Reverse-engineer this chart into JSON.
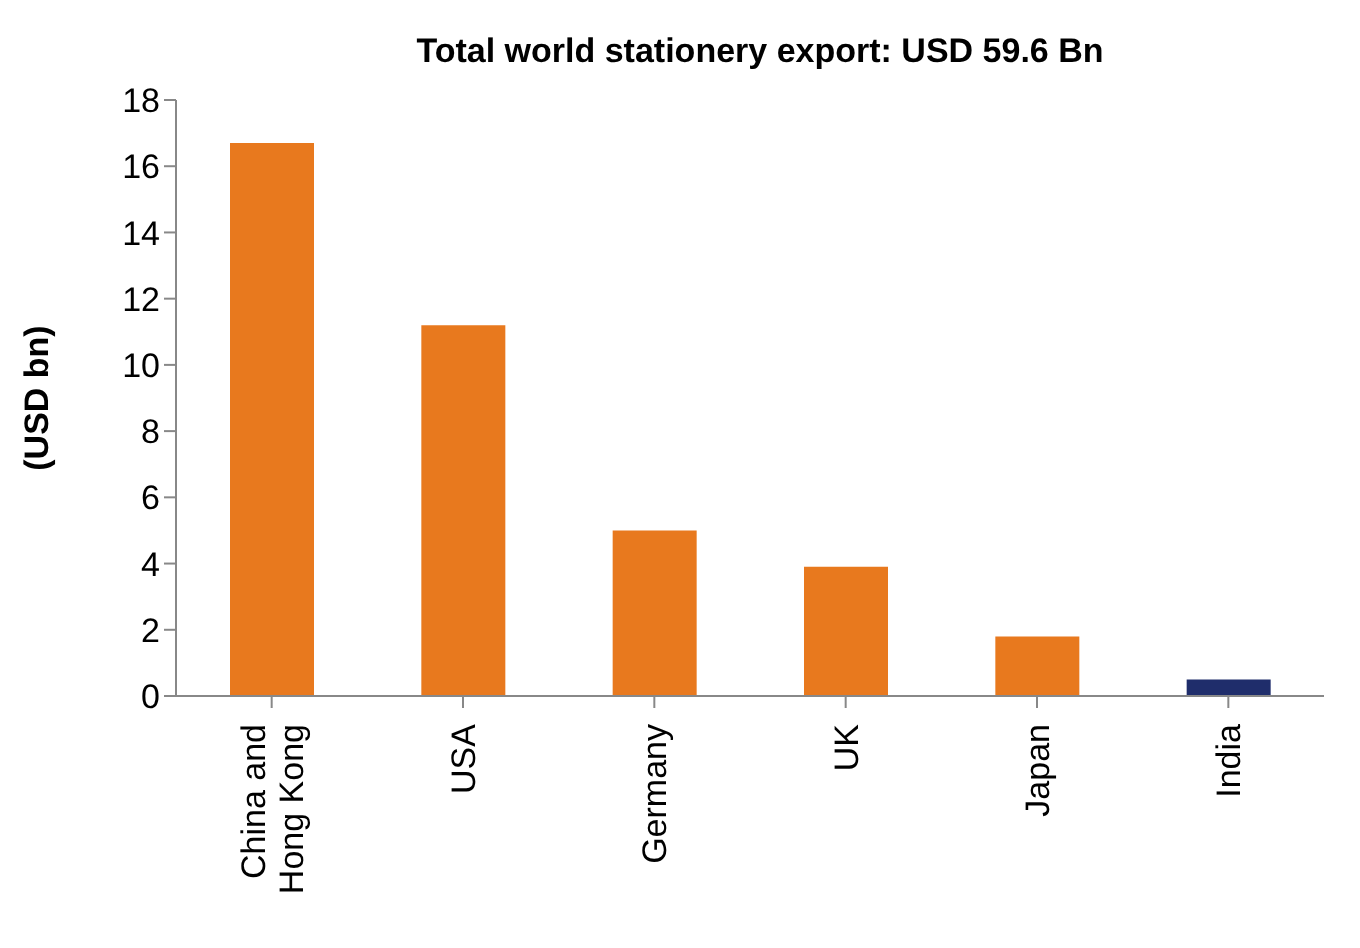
{
  "chart_data": {
    "type": "bar",
    "title": "Total world stationery export: USD 59.6 Bn",
    "ylabel": "(USD bn)",
    "categories": [
      "China and Hong Kong",
      "USA",
      "Germany",
      "UK",
      "Japan",
      "India"
    ],
    "values": [
      16.7,
      11.2,
      5.0,
      3.9,
      1.8,
      0.5
    ],
    "colors": [
      "#e8791e",
      "#e8791e",
      "#e8791e",
      "#e8791e",
      "#e8791e",
      "#1f2d6b"
    ],
    "ylim": [
      0,
      18
    ],
    "yticks": [
      0,
      2,
      4,
      6,
      8,
      10,
      12,
      14,
      16,
      18
    ],
    "grid": false
  }
}
